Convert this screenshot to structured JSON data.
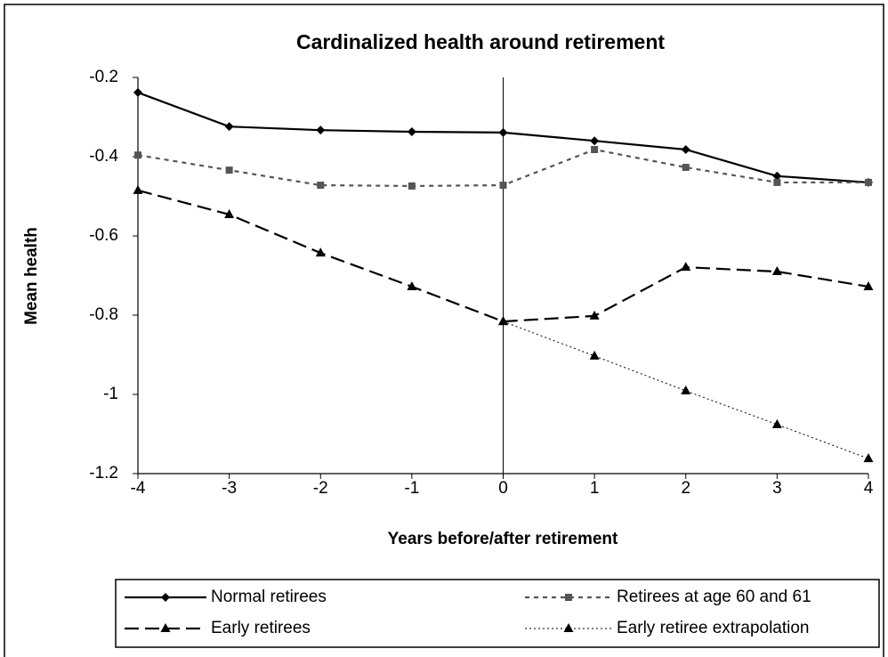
{
  "chart_data": {
    "type": "line",
    "title": "Cardinalized health around retirement",
    "x_label": "Years before/after retirement",
    "y_label": "Mean health",
    "x": [
      -4,
      -3,
      -2,
      -1,
      0,
      1,
      2,
      3,
      4
    ],
    "xlim": [
      -4,
      4
    ],
    "xticks": [
      -4,
      -3,
      -2,
      -1,
      0,
      1,
      2,
      3,
      4
    ],
    "ylim": [
      -1.2,
      -0.2
    ],
    "yticks": [
      -0.2,
      -0.4,
      -0.6,
      -0.8,
      -1,
      -1.2
    ],
    "vline": 0,
    "series": [
      {
        "name": "Normal retirees",
        "color": "#000000",
        "dash": "none",
        "marker": "diamond",
        "values": [
          -0.238,
          -0.324,
          -0.333,
          -0.337,
          -0.339,
          -0.36,
          -0.382,
          -0.449,
          -0.465
        ]
      },
      {
        "name": "Retirees at age 60 and 61",
        "color": "#555555",
        "dash": "5,5",
        "marker": "square",
        "values": [
          -0.396,
          -0.434,
          -0.472,
          -0.474,
          -0.472,
          -0.382,
          -0.427,
          -0.465,
          -0.465
        ]
      },
      {
        "name": "Early retirees",
        "color": "#000000",
        "dash": "16,7",
        "marker": "triangle",
        "values": [
          -0.485,
          -0.546,
          -0.643,
          -0.728,
          -0.816,
          -0.802,
          -0.679,
          -0.69,
          -0.728
        ]
      },
      {
        "name": "Early retiree extrapolation",
        "color": "#000000",
        "dash": "2,3",
        "marker": "triangle",
        "values": [
          null,
          null,
          null,
          null,
          -0.816,
          -0.903,
          -0.991,
          -1.076,
          -1.162
        ]
      }
    ]
  }
}
